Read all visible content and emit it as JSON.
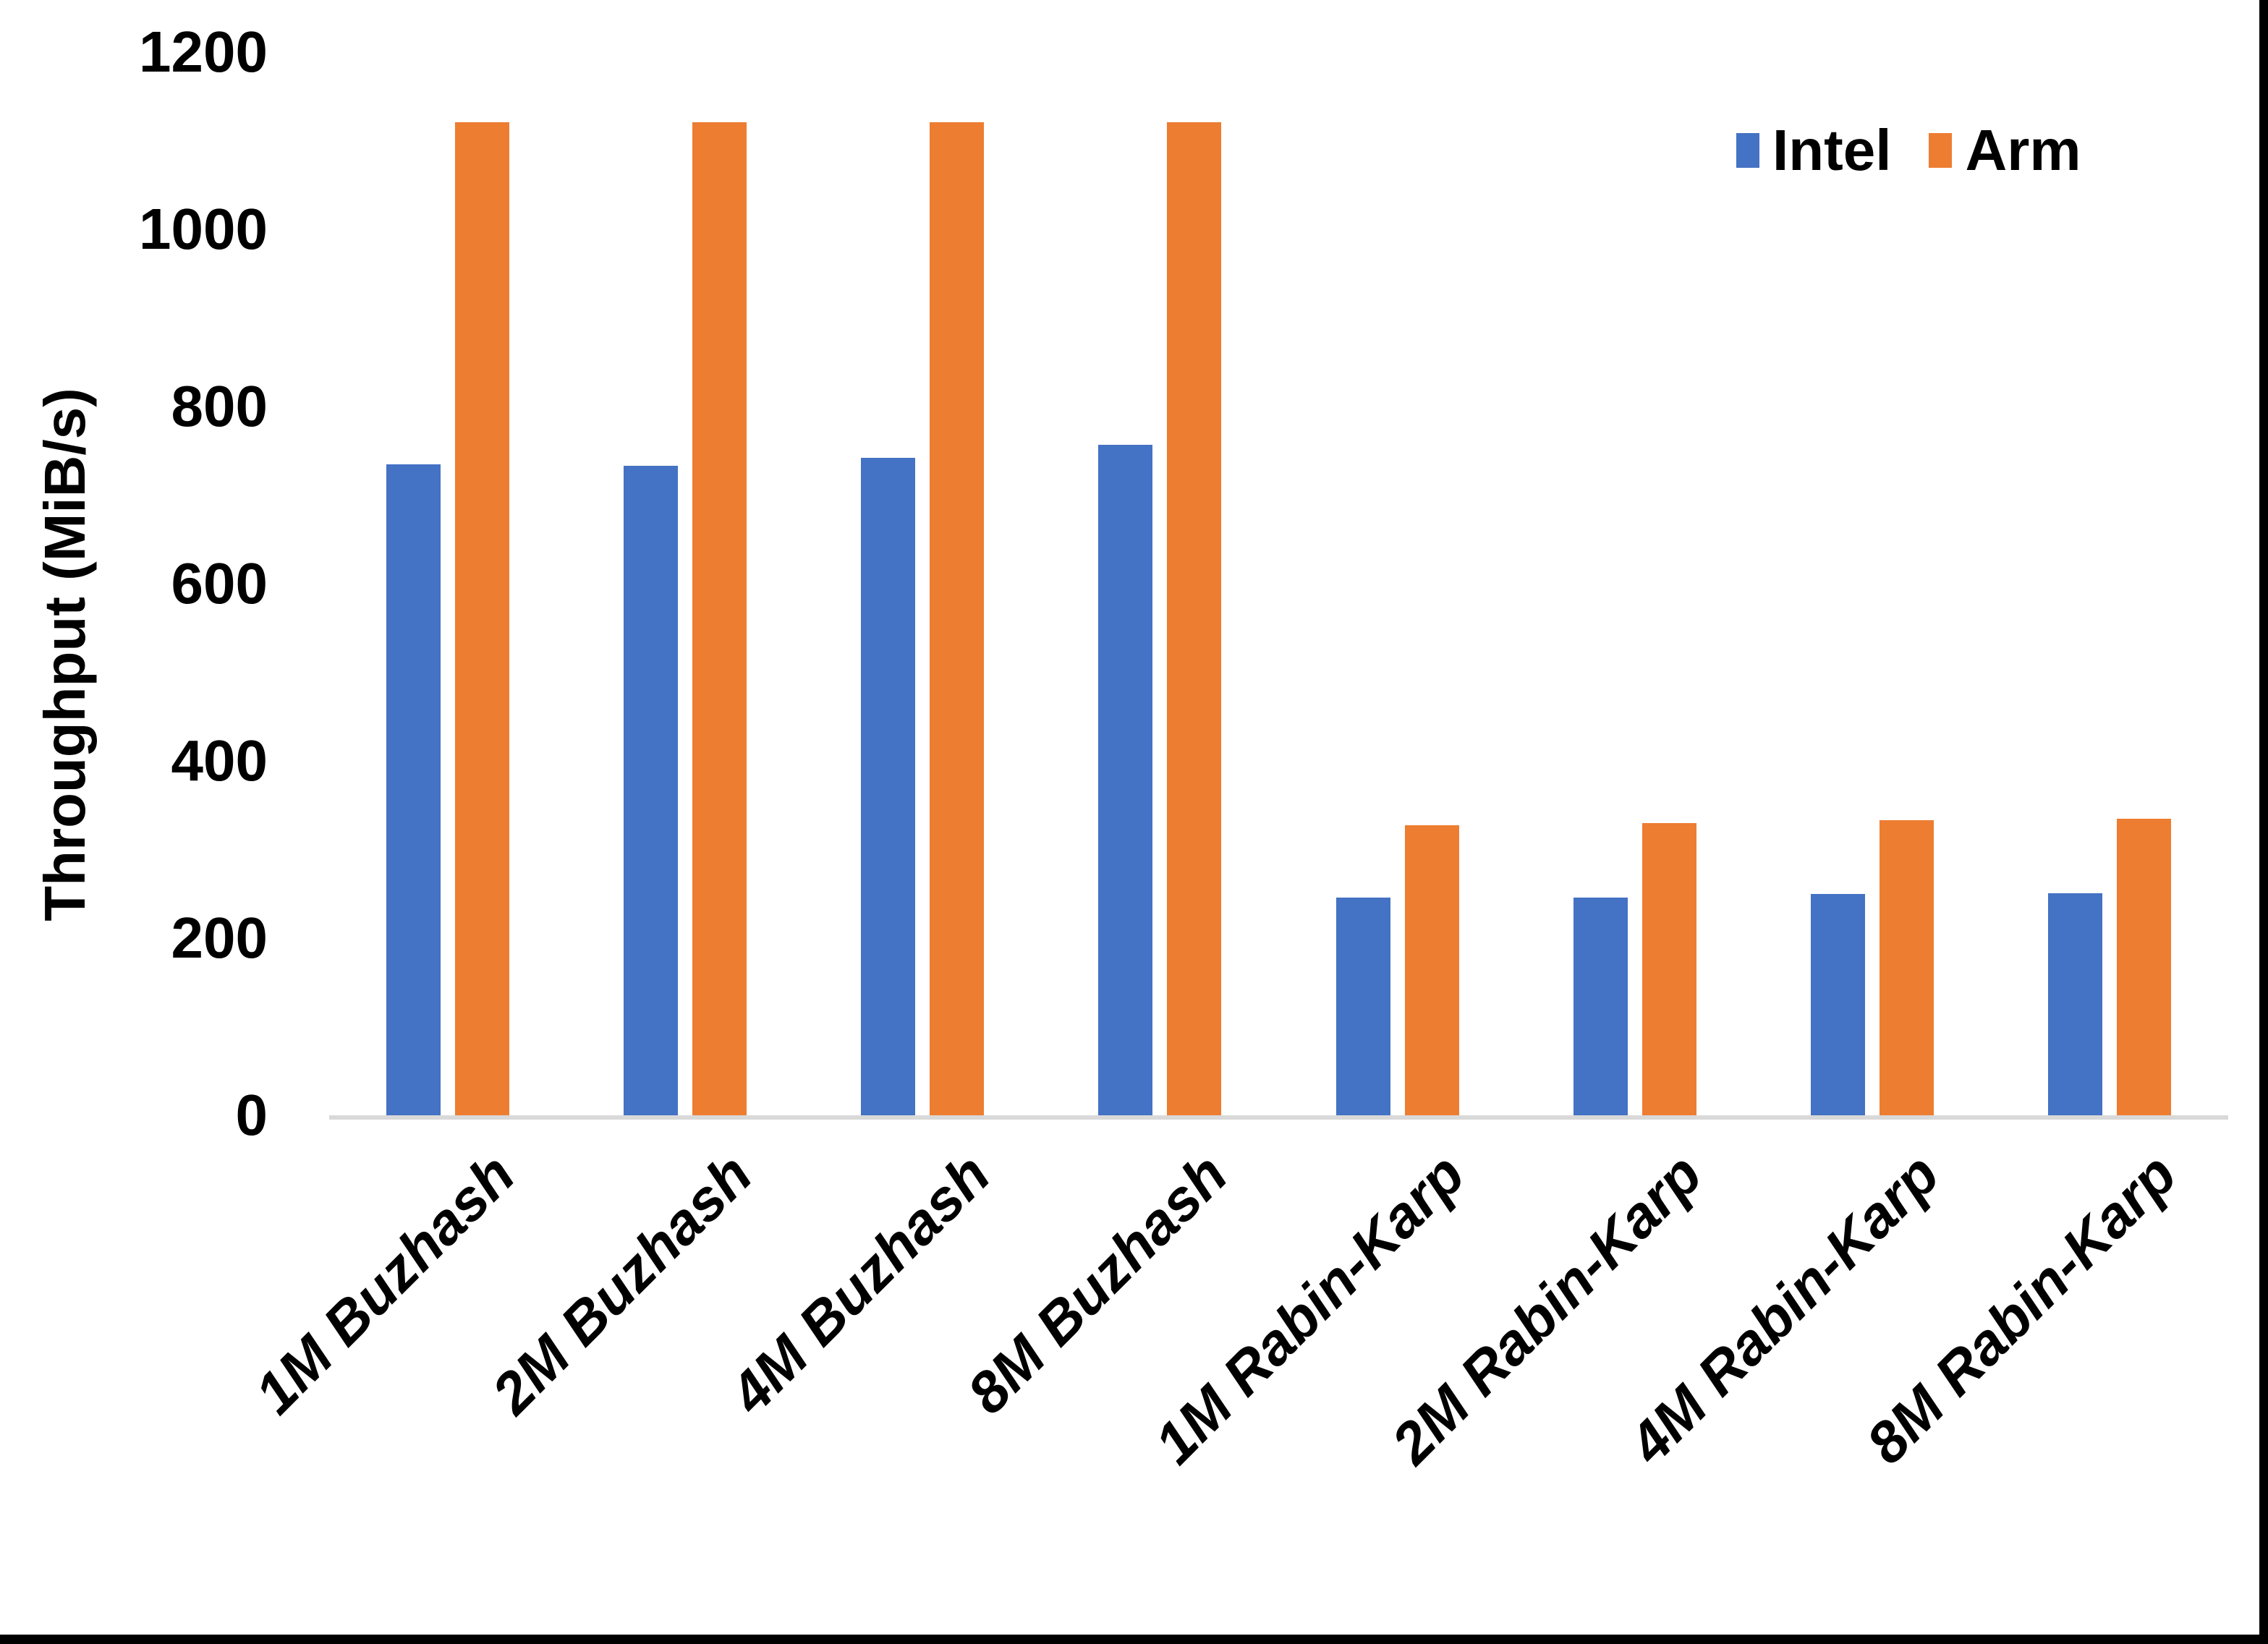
{
  "chart_data": {
    "type": "bar",
    "categories": [
      "1M Buzhash",
      "2M Buzhash",
      "4M Buzhash",
      "8M Buzhash",
      "1M Rabin-Karp",
      "2M Rabin-Karp",
      "4M Rabin-Karp",
      "8M Rabin-Karp"
    ],
    "series": [
      {
        "name": "Intel",
        "color": "#4472C4",
        "values": [
          735,
          733,
          742,
          757,
          246,
          246,
          250,
          251
        ]
      },
      {
        "name": "Arm",
        "color": "#ED7D31",
        "values": [
          1121,
          1121,
          1121,
          1121,
          327,
          330,
          333,
          335
        ]
      }
    ],
    "title": "",
    "xlabel": "",
    "ylabel": "Throughput (MiB/s)",
    "yticks": [
      0,
      200,
      400,
      600,
      800,
      1000,
      1200
    ],
    "ylim": [
      0,
      1200
    ],
    "grid": false,
    "legend_position": "top-right",
    "axis_line_color": "#D9D9D9",
    "text_color": "#000000",
    "background_color": "#FFFFFF"
  }
}
